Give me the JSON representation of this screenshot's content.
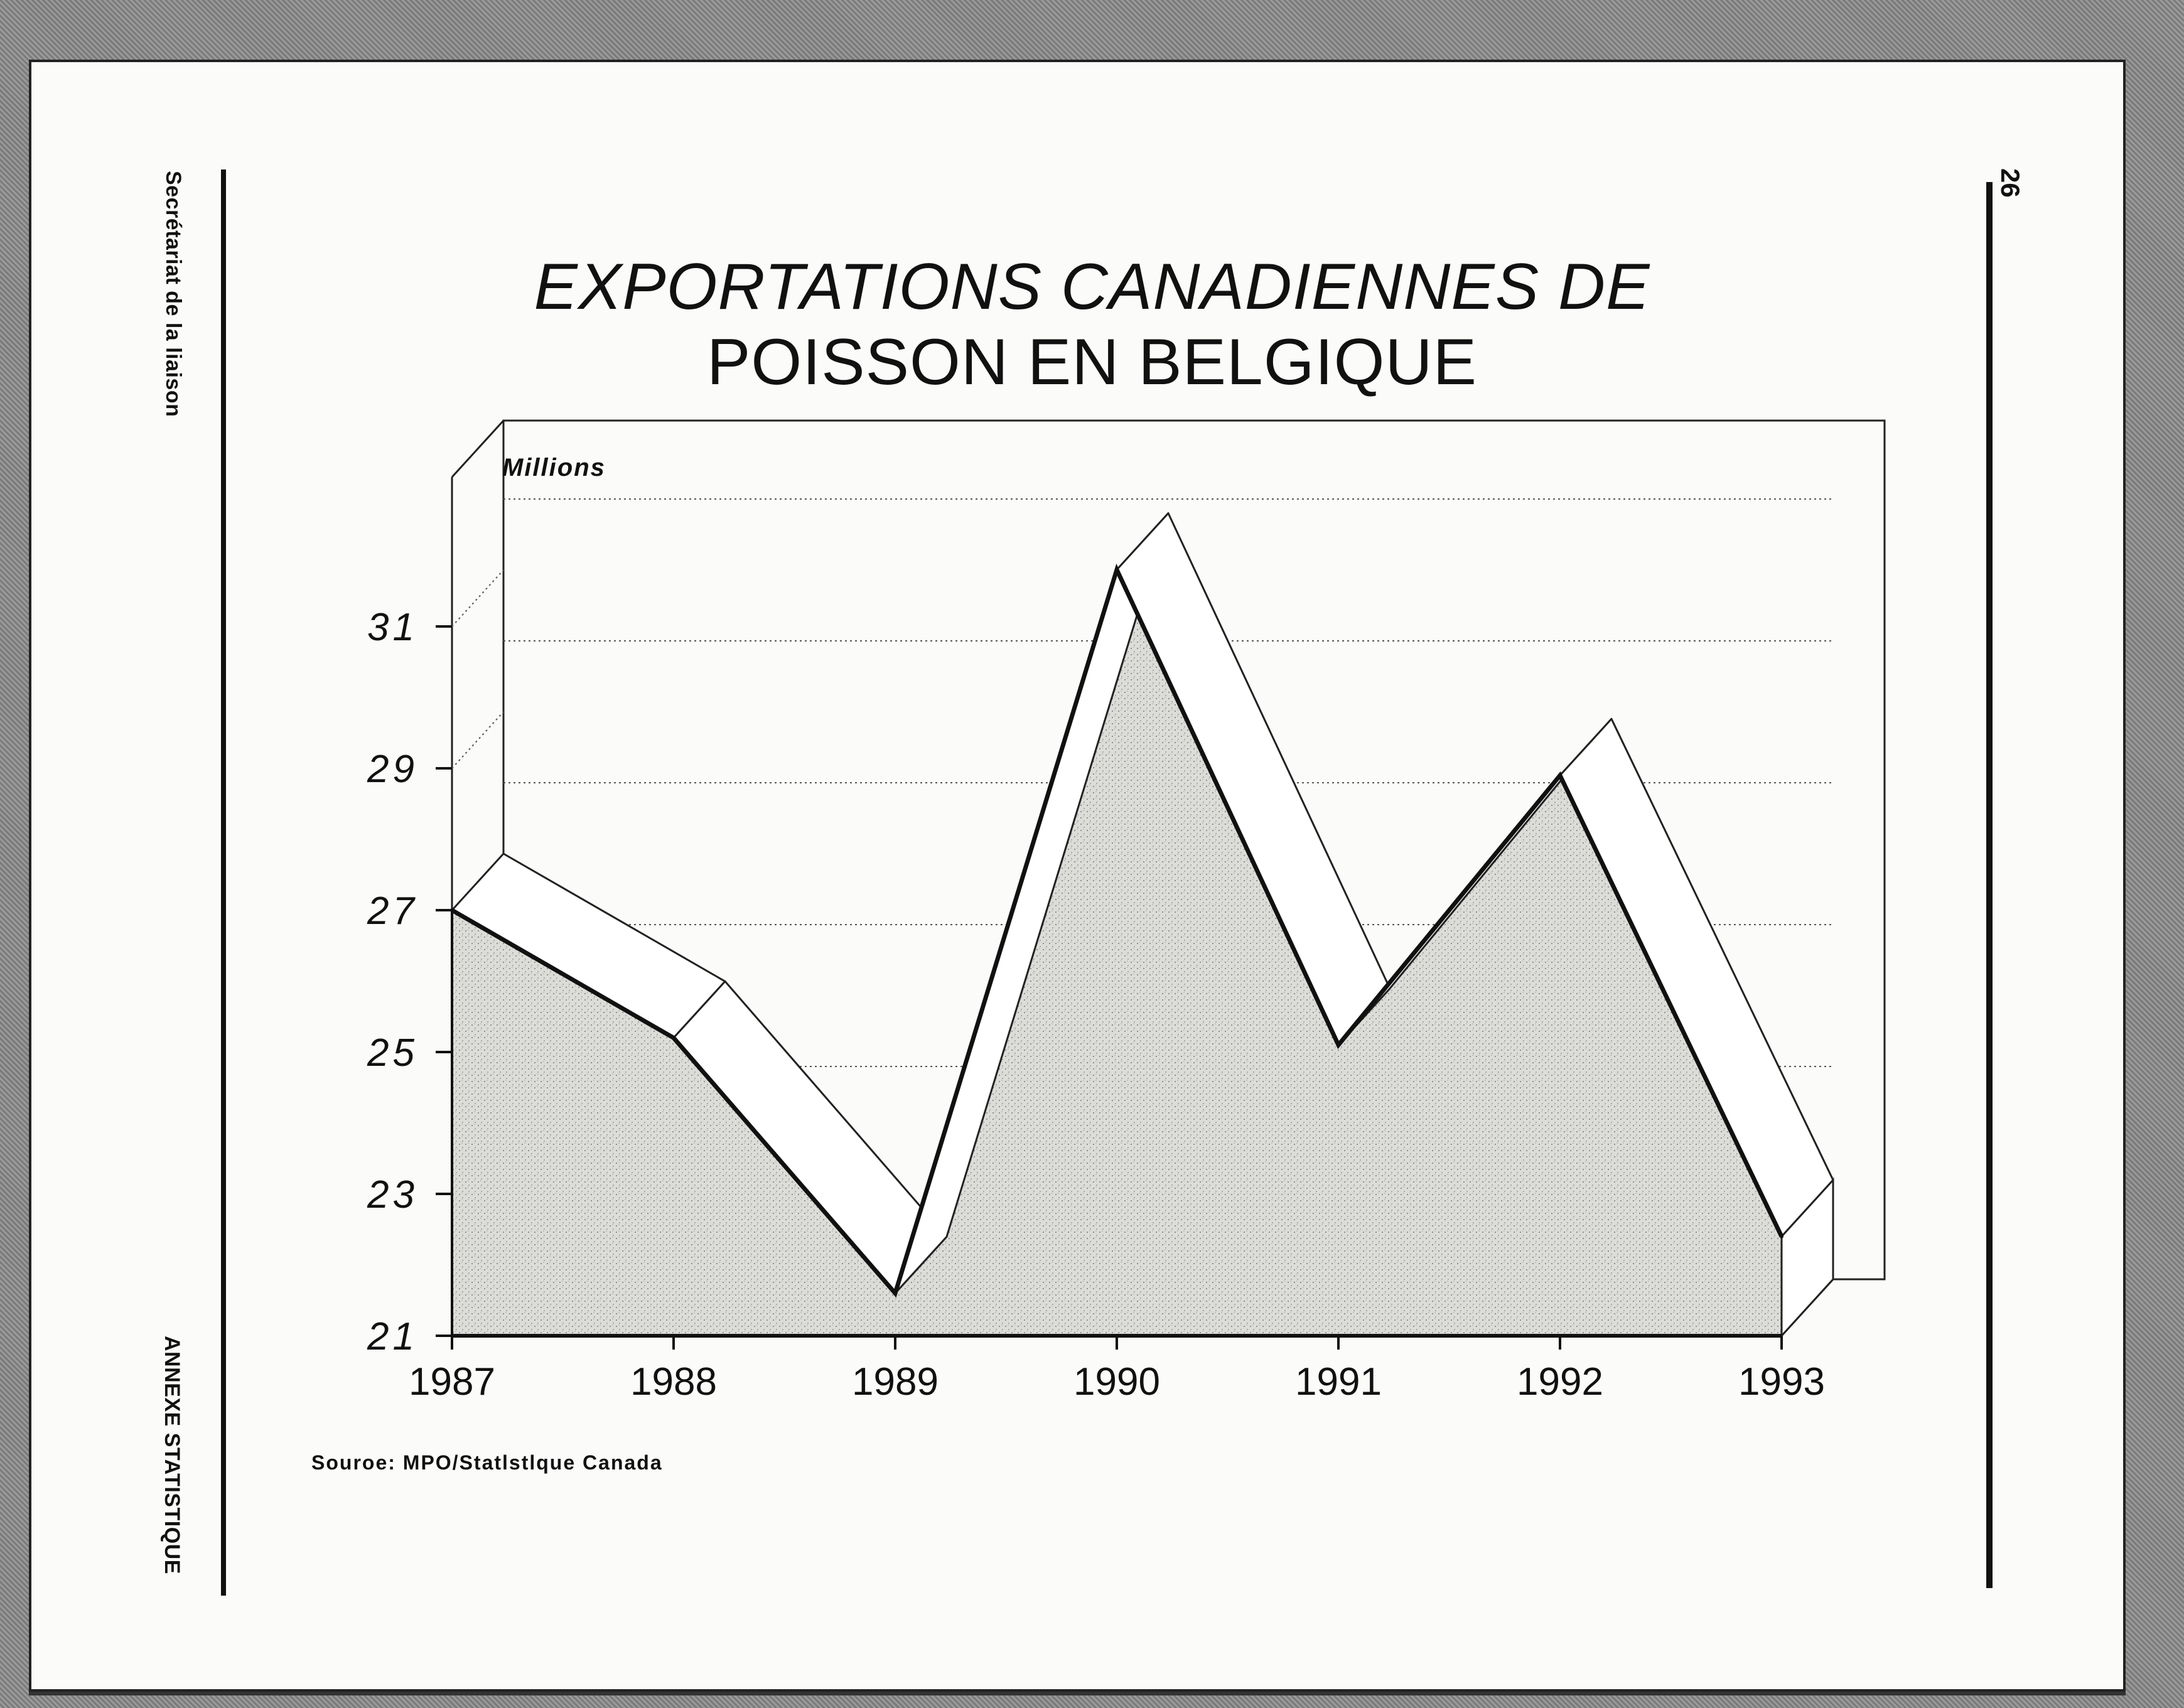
{
  "side_text": {
    "left_top": "Secrétariat de la liaison",
    "left_bottom": "ANNEXE STATISTIQUE",
    "page_number": "26"
  },
  "source": "Souroe: MPO/Statlstlque Canada",
  "chart_data": {
    "type": "area",
    "title_line1": "EXPORTATIONS CANADIENNES DE",
    "title_line2": "POISSON EN BELGIQUE",
    "ylabel": "Millions",
    "xlabel": "",
    "categories": [
      "1987",
      "1988",
      "1989",
      "1990",
      "1991",
      "1992",
      "1993"
    ],
    "values": [
      27.0,
      25.2,
      21.6,
      31.8,
      25.1,
      28.9,
      22.4
    ],
    "yticks": [
      "31",
      "29",
      "27",
      "25",
      "23",
      "21"
    ],
    "ytick_values": [
      31,
      29,
      27,
      25,
      23,
      21
    ],
    "ylim": [
      21,
      33
    ],
    "grid": true,
    "style": "3d-ribbon",
    "colors": {
      "fill": "#d6d6d2",
      "line": "#111111",
      "ribbon": "#ffffff",
      "grid": "#555555"
    }
  }
}
